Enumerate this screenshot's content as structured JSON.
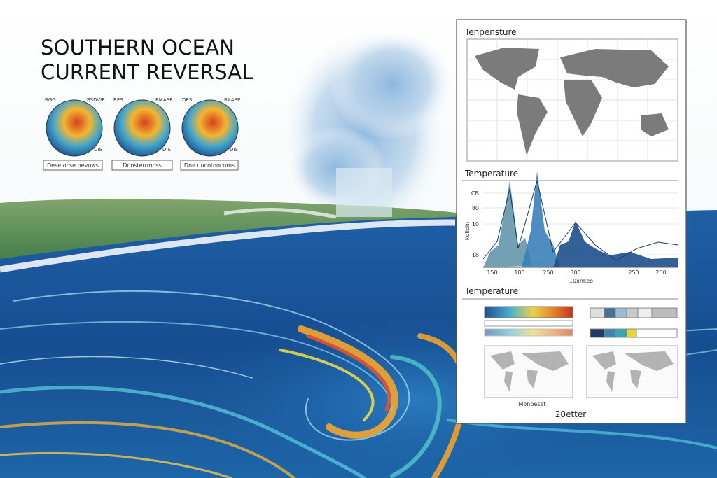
{
  "title": {
    "line1": "SOUTHERN OCEAN",
    "line2": "CURRENT REVERSAL"
  },
  "globes": [
    {
      "top_left": "RGG",
      "top_right": "BSDVIR",
      "bottom_right": "DIS",
      "caption": "Dese ocse nevows"
    },
    {
      "top_left": "RES",
      "top_right": "BMASR",
      "bottom_right": "DIS",
      "caption": "Dnosterrmoss"
    },
    {
      "top_left": "DES",
      "top_right": "BAASE",
      "bottom_right": "DIS",
      "caption": "Dne uncotoocoms"
    }
  ],
  "panel": {
    "map": {
      "title": "Tenpensture"
    },
    "chart": {
      "title": "Temperature",
      "y_label": "Kolloin",
      "y_ticks": [
        "CB",
        "80",
        "10",
        "18"
      ],
      "x_ticks": [
        "150",
        "100",
        "250",
        "300",
        "250",
        "250"
      ],
      "x_label": "10xnkeo"
    },
    "heatmaps": {
      "title": "Temperature",
      "left_x_label": "Monbeset",
      "footer": "20etter"
    }
  }
}
